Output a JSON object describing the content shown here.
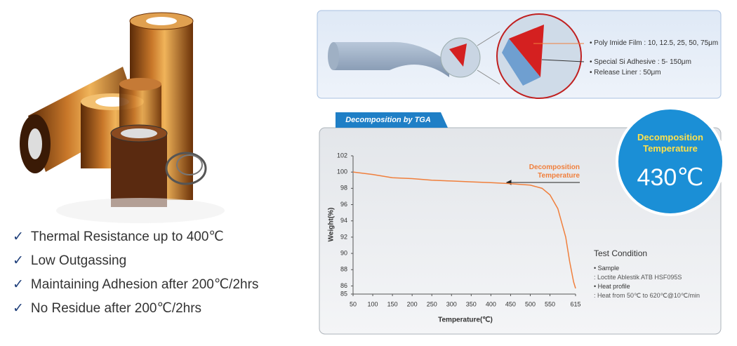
{
  "features": [
    "Thermal Resistance up to 400℃",
    "Low Outgassing",
    "Maintaining Adhesion after 200℃/2hrs",
    "No Residue after 200℃/2hrs"
  ],
  "structure": {
    "layers": [
      "Poly Imide Film : 10, 12.5, 25, 50, 75μm",
      "Special Si Adhesive : 5- 150μm",
      "Release Liner : 50μm"
    ]
  },
  "badge": {
    "title": "Decomposition Temperature",
    "value": "430℃"
  },
  "test_condition": {
    "title": "Test Condition",
    "items": [
      "Sample",
      ": Loctite Ablestik ATB HSF095S",
      "Heat profile",
      ": Heat from 50℃ to 620℃@10℃/min"
    ]
  },
  "chart_data": {
    "type": "line",
    "title": "Decomposition by TGA",
    "x_label": "Temperature(℃)",
    "y_label": "Weight(%)",
    "annotation": "Decomposition Temperature",
    "x": [
      50,
      100,
      150,
      200,
      250,
      300,
      350,
      400,
      440,
      500,
      530,
      550,
      570,
      590,
      600,
      610,
      615
    ],
    "values": [
      100,
      99.7,
      99.3,
      99.2,
      99.0,
      98.9,
      98.8,
      98.7,
      98.6,
      98.4,
      98.0,
      97.2,
      95.5,
      92,
      89,
      86.5,
      85.7
    ],
    "color": "#f07f3c",
    "xlim": [
      50,
      615
    ],
    "xticks": [
      50,
      100,
      150,
      200,
      250,
      300,
      350,
      400,
      450,
      500,
      550,
      615
    ],
    "ylim": [
      85,
      102
    ],
    "yticks": [
      85,
      86,
      88,
      90,
      92,
      94,
      96,
      98,
      100,
      102
    ]
  }
}
